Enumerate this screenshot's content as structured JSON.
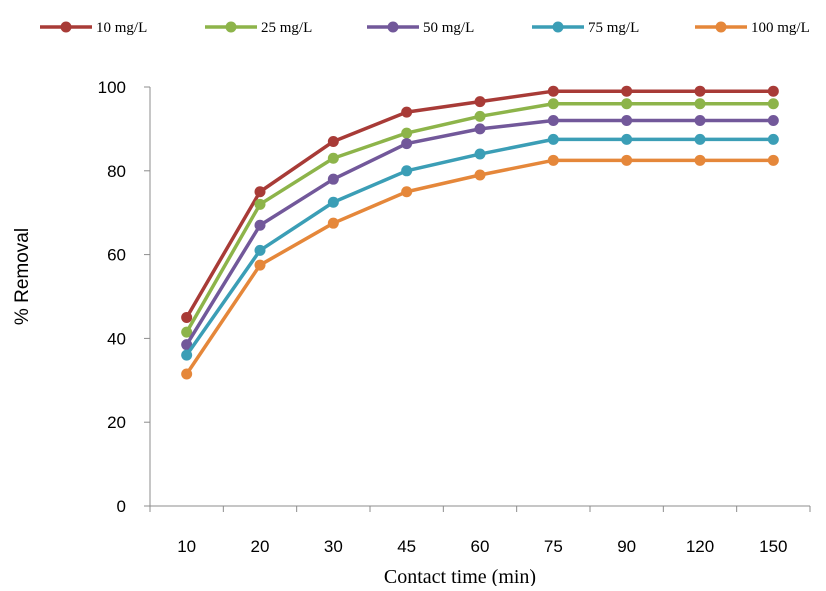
{
  "chart_data": {
    "type": "line",
    "title": "",
    "xlabel": "Contact time (min)",
    "ylabel": "% Removal",
    "categories": [
      "10",
      "20",
      "30",
      "45",
      "60",
      "75",
      "90",
      "120",
      "150"
    ],
    "ylim": [
      0,
      100
    ],
    "yticks": [
      "0",
      "20",
      "40",
      "60",
      "80",
      "100"
    ],
    "grid": false,
    "legend_position": "top",
    "series": [
      {
        "name": "10 mg/L",
        "color": "#A83B37",
        "values": [
          45.0,
          75.0,
          87.0,
          94.0,
          96.5,
          99.0,
          99.0,
          99.0,
          99.0
        ]
      },
      {
        "name": "25 mg/L",
        "color": "#8DB44A",
        "values": [
          41.5,
          72.0,
          83.0,
          89.0,
          93.0,
          96.0,
          96.0,
          96.0,
          96.0
        ]
      },
      {
        "name": "50 mg/L",
        "color": "#72589A",
        "values": [
          38.5,
          67.0,
          78.0,
          86.5,
          90.0,
          92.0,
          92.0,
          92.0,
          92.0
        ]
      },
      {
        "name": "75 mg/L",
        "color": "#3B9EB6",
        "values": [
          36.0,
          61.0,
          72.5,
          80.0,
          84.0,
          87.5,
          87.5,
          87.5,
          87.5
        ]
      },
      {
        "name": "100 mg/L",
        "color": "#E5873A",
        "values": [
          31.5,
          57.5,
          67.5,
          75.0,
          79.0,
          82.5,
          82.5,
          82.5,
          82.5
        ]
      }
    ]
  }
}
